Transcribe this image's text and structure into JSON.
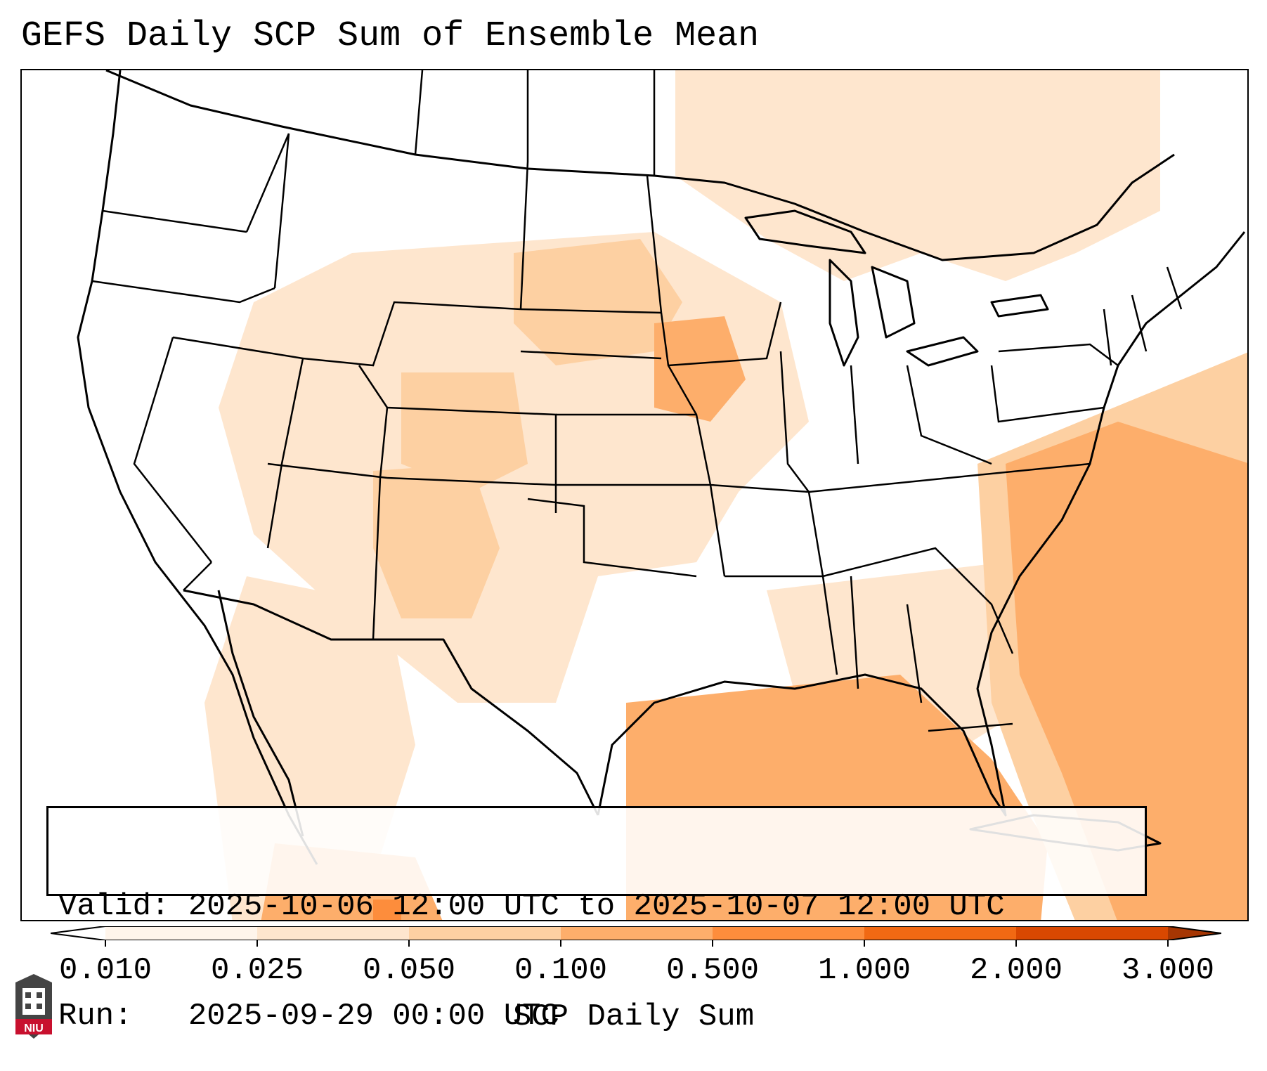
{
  "title": "GEFS Daily SCP Sum of Ensemble Mean",
  "info": {
    "valid": "Valid: 2025-10-06 12:00 UTC to 2025-10-07 12:00 UTC",
    "run": "Run:   2025-09-29 00:00 UTC"
  },
  "colorbar": {
    "label": "SCP Daily Sum",
    "ticks": [
      "0.010",
      "0.025",
      "0.050",
      "0.100",
      "0.500",
      "1.000",
      "2.000",
      "3.000"
    ],
    "colors": [
      "#fff5eb",
      "#fee6ce",
      "#fdd0a2",
      "#fdae6b",
      "#fd8d3c",
      "#f16913",
      "#d94801",
      "#a63603"
    ]
  },
  "logo": {
    "text": "NIU",
    "color": "#c8102e"
  }
}
